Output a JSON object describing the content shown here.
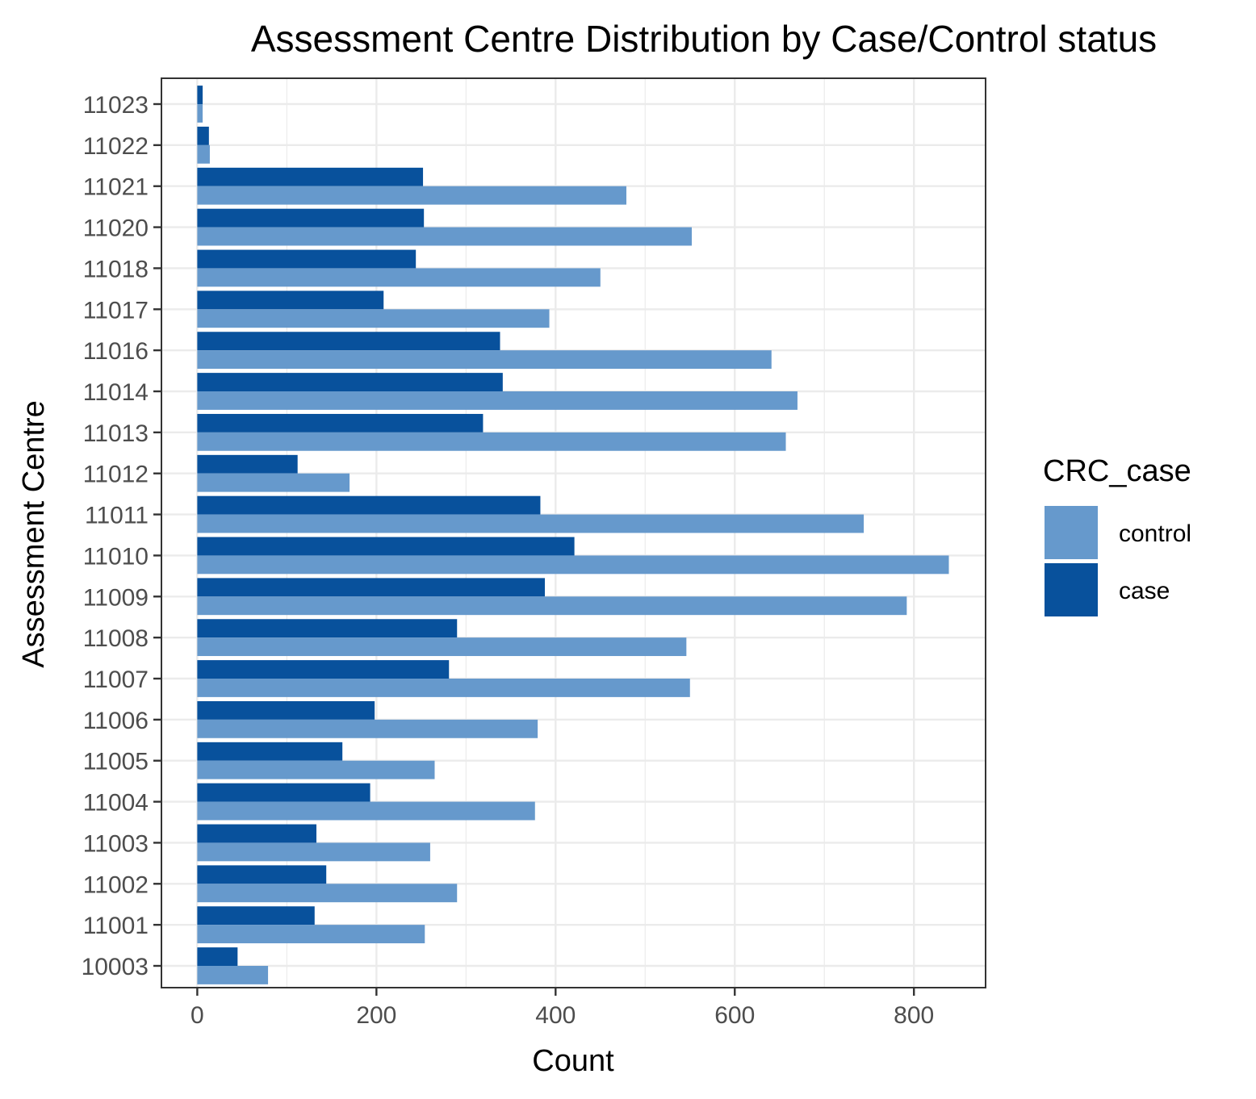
{
  "chart_data": {
    "type": "bar",
    "orientation": "horizontal",
    "title": "Assessment Centre Distribution by Case/Control status",
    "xlabel": "Count",
    "ylabel": "Assessment Centre",
    "xlim": [
      -40,
      880
    ],
    "xticks": [
      0,
      200,
      400,
      600,
      800
    ],
    "grid": true,
    "legend_position": "right",
    "legend_title": "CRC_case",
    "categories": [
      "10003",
      "11001",
      "11002",
      "11003",
      "11004",
      "11005",
      "11006",
      "11007",
      "11008",
      "11009",
      "11010",
      "11011",
      "11012",
      "11013",
      "11014",
      "11016",
      "11017",
      "11018",
      "11020",
      "11021",
      "11022",
      "11023"
    ],
    "series": [
      {
        "name": "control",
        "color": "#6699CC",
        "values": [
          79,
          254,
          290,
          260,
          377,
          265,
          380,
          550,
          546,
          792,
          839,
          744,
          170,
          657,
          670,
          641,
          393,
          450,
          552,
          479,
          14,
          6
        ]
      },
      {
        "name": "case",
        "color": "#08519C",
        "values": [
          45,
          131,
          144,
          133,
          193,
          162,
          198,
          281,
          290,
          388,
          421,
          383,
          112,
          319,
          341,
          338,
          208,
          244,
          253,
          252,
          13,
          6
        ]
      }
    ]
  }
}
